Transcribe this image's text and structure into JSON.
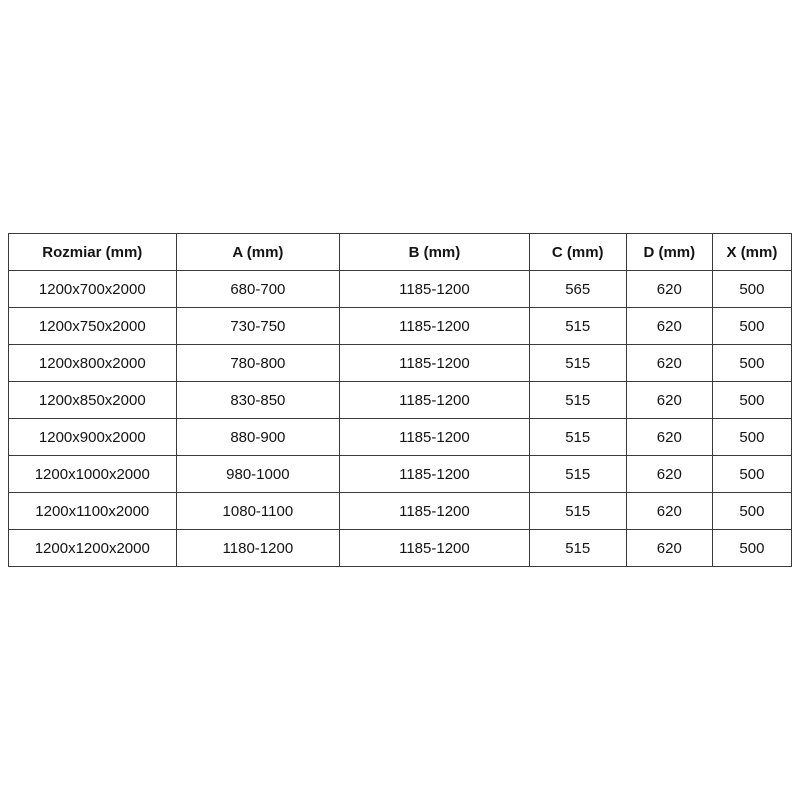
{
  "chart_data": {
    "type": "table",
    "title": "",
    "columns": [
      "Rozmiar (mm)",
      "A (mm)",
      "B (mm)",
      "C (mm)",
      "D (mm)",
      "X (mm)"
    ],
    "rows": [
      [
        "1200x700x2000",
        "680-700",
        "1185-1200",
        "565",
        "620",
        "500"
      ],
      [
        "1200x750x2000",
        "730-750",
        "1185-1200",
        "515",
        "620",
        "500"
      ],
      [
        "1200x800x2000",
        "780-800",
        "1185-1200",
        "515",
        "620",
        "500"
      ],
      [
        "1200x850x2000",
        "830-850",
        "1185-1200",
        "515",
        "620",
        "500"
      ],
      [
        "1200x900x2000",
        "880-900",
        "1185-1200",
        "515",
        "620",
        "500"
      ],
      [
        "1200x1000x2000",
        "980-1000",
        "1185-1200",
        "515",
        "620",
        "500"
      ],
      [
        "1200x1100x2000",
        "1080-1100",
        "1185-1200",
        "515",
        "620",
        "500"
      ],
      [
        "1200x1200x2000",
        "1180-1200",
        "1185-1200",
        "515",
        "620",
        "500"
      ]
    ],
    "layout": {
      "header_row": true,
      "all_cells_centered": true
    },
    "colors": {
      "border": "#3a3a3a",
      "text": "#141414",
      "background": "#ffffff"
    }
  }
}
